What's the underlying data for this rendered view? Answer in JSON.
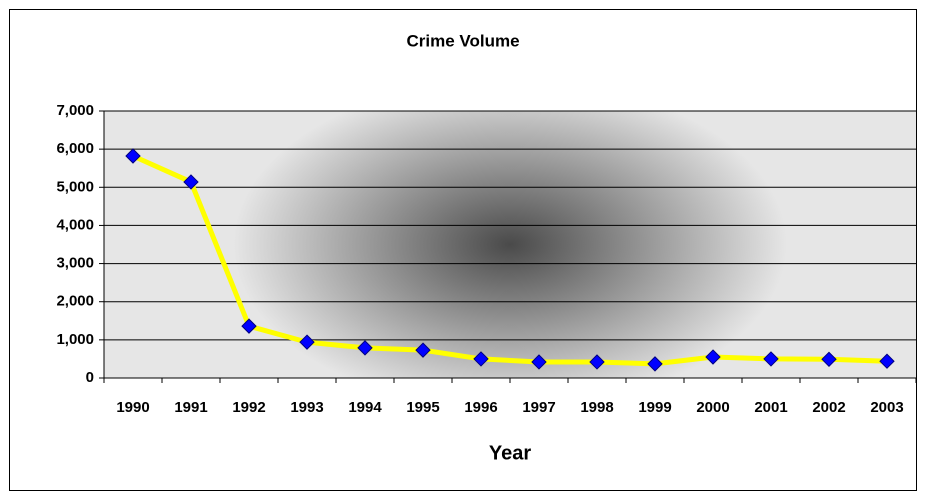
{
  "chart_data": {
    "type": "line",
    "title": "Crime Volume",
    "x_label": "Year",
    "categories": [
      "1990",
      "1991",
      "1992",
      "1993",
      "1994",
      "1995",
      "1996",
      "1997",
      "1998",
      "1999",
      "2000",
      "2001",
      "2002",
      "2003"
    ],
    "values": [
      5820,
      5140,
      1360,
      940,
      790,
      730,
      500,
      420,
      420,
      370,
      550,
      500,
      490,
      440
    ],
    "color": "#ffff00",
    "marker_color": "#0000ff",
    "ylim": [
      0,
      7000
    ],
    "yticks": [
      0,
      {
        "value": 1000,
        "label": "1,000"
      },
      {
        "value": 2000,
        "label": "2,000"
      },
      {
        "value": 3000,
        "label": "3,000"
      },
      {
        "value": 4000,
        "label": "4,000"
      },
      {
        "value": 5000,
        "label": "5,000"
      },
      {
        "value": 6000,
        "label": "6,000"
      },
      {
        "value": 7000,
        "label": "7,000"
      }
    ],
    "grid": true
  }
}
